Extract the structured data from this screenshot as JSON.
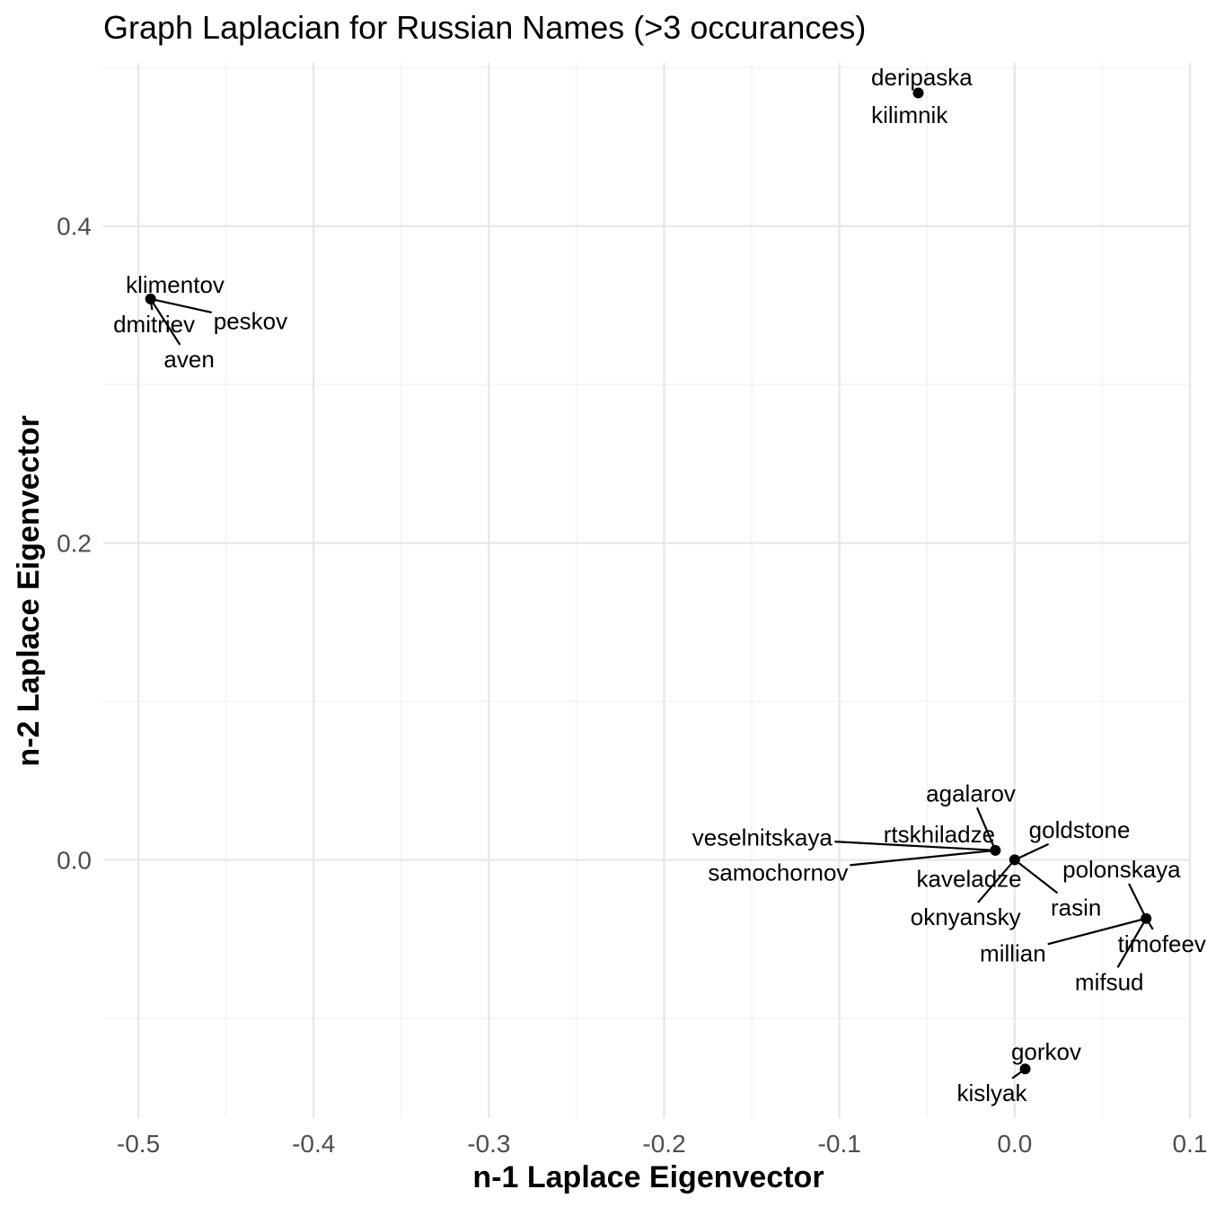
{
  "chart_data": {
    "type": "scatter",
    "title": "Graph Laplacian for Russian Names (>3 occurances)",
    "xlabel": "n-1 Laplace Eigenvector",
    "ylabel": "n-2 Laplace Eigenvector",
    "xlim": [
      -0.52,
      0.1
    ],
    "ylim": [
      -0.163,
      0.503
    ],
    "x_ticks": [
      -0.5,
      -0.4,
      -0.3,
      -0.2,
      -0.1,
      0.0,
      0.1
    ],
    "x_tick_labels": [
      "-0.5",
      "-0.4",
      "-0.3",
      "-0.2",
      "-0.1",
      "0.0",
      "0.1"
    ],
    "y_ticks": [
      0.0,
      0.2,
      0.4
    ],
    "y_tick_labels": [
      "0.0",
      "0.2",
      "0.4"
    ],
    "grid": true,
    "legend": "none",
    "point_color": "#000000",
    "points": [
      {
        "x": -0.055,
        "y": 0.484
      },
      {
        "x": -0.493,
        "y": 0.354
      },
      {
        "x": -0.011,
        "y": 0.006
      },
      {
        "x": 0.0,
        "y": 0.0
      },
      {
        "x": 0.075,
        "y": -0.037
      },
      {
        "x": 0.006,
        "y": -0.132
      }
    ],
    "labels": [
      {
        "text": "deripaska",
        "point": 0,
        "lx": -0.053,
        "ly": 0.494
      },
      {
        "text": "kilimnik",
        "point": 0,
        "lx": -0.06,
        "ly": 0.47
      },
      {
        "text": "klimentov",
        "point": 1,
        "lx": -0.479,
        "ly": 0.363
      },
      {
        "text": "peskov",
        "point": 1,
        "lx": -0.436,
        "ly": 0.34
      },
      {
        "text": "dmitriev",
        "point": 1,
        "lx": -0.491,
        "ly": 0.338
      },
      {
        "text": "aven",
        "point": 1,
        "lx": -0.471,
        "ly": 0.316
      },
      {
        "text": "agalarov",
        "point": 2,
        "lx": -0.025,
        "ly": 0.042
      },
      {
        "text": "veselnitskaya",
        "point": 2,
        "lx": -0.144,
        "ly": 0.014
      },
      {
        "text": "samochornov",
        "point": 2,
        "lx": -0.135,
        "ly": -0.008
      },
      {
        "text": "rtskhiladze",
        "point": 2,
        "lx": -0.043,
        "ly": 0.016
      },
      {
        "text": "goldstone",
        "point": 3,
        "lx": 0.037,
        "ly": 0.019
      },
      {
        "text": "kaveladze",
        "point": 3,
        "lx": -0.026,
        "ly": -0.012
      },
      {
        "text": "oknyansky",
        "point": 3,
        "lx": -0.028,
        "ly": -0.036
      },
      {
        "text": "rasin",
        "point": 3,
        "lx": 0.035,
        "ly": -0.03
      },
      {
        "text": "polonskaya",
        "point": 4,
        "lx": 0.061,
        "ly": -0.006
      },
      {
        "text": "timofeev",
        "point": 4,
        "lx": 0.084,
        "ly": -0.053
      },
      {
        "text": "millian",
        "point": 4,
        "lx": -0.001,
        "ly": -0.059
      },
      {
        "text": "mifsud",
        "point": 4,
        "lx": 0.054,
        "ly": -0.077
      },
      {
        "text": "gorkov",
        "point": 5,
        "lx": 0.018,
        "ly": -0.121
      },
      {
        "text": "kislyak",
        "point": 5,
        "lx": -0.013,
        "ly": -0.147
      }
    ]
  }
}
